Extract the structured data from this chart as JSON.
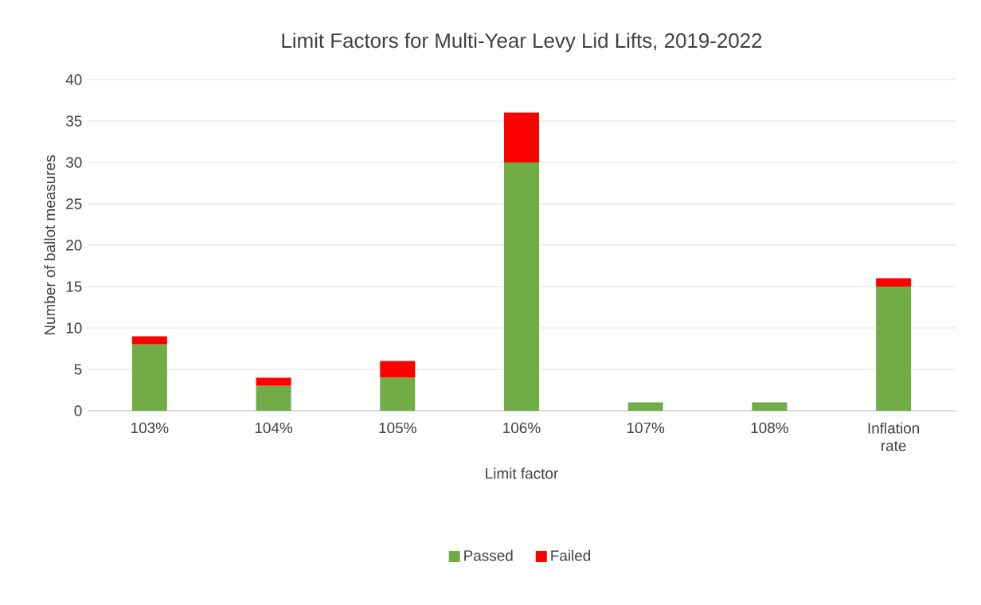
{
  "chart_data": {
    "type": "bar",
    "stacked": true,
    "title": "Limit Factors for Multi-Year Levy Lid Lifts, 2019-2022",
    "xlabel": "Limit factor",
    "ylabel": "Number of ballot measures",
    "categories": [
      "103%",
      "104%",
      "105%",
      "106%",
      "107%",
      "108%",
      "Inflation rate"
    ],
    "series": [
      {
        "name": "Passed",
        "color": "#70ad47",
        "values": [
          8,
          3,
          4,
          30,
          1,
          1,
          15
        ]
      },
      {
        "name": "Failed",
        "color": "#ff0000",
        "values": [
          1,
          1,
          2,
          6,
          0,
          0,
          1
        ]
      }
    ],
    "ylim": [
      0,
      40
    ],
    "yticks": [
      0,
      5,
      10,
      15,
      20,
      25,
      30,
      35,
      40
    ],
    "grid": "y",
    "legend": "bottom"
  }
}
